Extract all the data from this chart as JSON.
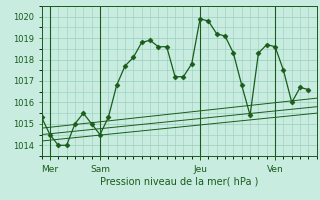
{
  "bg_color": "#c8ece0",
  "grid_color": "#99ccbb",
  "line_color": "#1a5c1a",
  "title": "Pression niveau de la mer( hPa )",
  "ylim": [
    1013.5,
    1020.5
  ],
  "yticks": [
    1014,
    1015,
    1016,
    1017,
    1018,
    1019,
    1020
  ],
  "xlim": [
    0,
    33
  ],
  "day_labels": [
    "Mer",
    "Sam",
    "Jeu",
    "Ven"
  ],
  "day_positions": [
    1,
    7,
    19,
    28
  ],
  "series_main": {
    "x": [
      0,
      1,
      2,
      3,
      4,
      5,
      6,
      7,
      8,
      9,
      10,
      11,
      12,
      13,
      14,
      15,
      16,
      17,
      18,
      19,
      20,
      21,
      22,
      23,
      24,
      25,
      26,
      27,
      28,
      29,
      30,
      31,
      32
    ],
    "y": [
      1015.3,
      1014.5,
      1014.0,
      1014.0,
      1015.0,
      1015.5,
      1015.0,
      1014.5,
      1015.3,
      1016.8,
      1017.7,
      1018.1,
      1018.8,
      1018.9,
      1018.6,
      1018.6,
      1017.2,
      1017.2,
      1017.8,
      1019.9,
      1019.8,
      1019.2,
      1019.1,
      1018.3,
      1016.8,
      1015.4,
      1018.3,
      1018.7,
      1018.6,
      1017.5,
      1016.0,
      1016.7,
      1016.6
    ]
  },
  "series_flat1": {
    "x": [
      0,
      33
    ],
    "y": [
      1014.8,
      1016.2
    ]
  },
  "series_flat2": {
    "x": [
      0,
      33
    ],
    "y": [
      1014.5,
      1015.8
    ]
  },
  "series_flat3": {
    "x": [
      0,
      33
    ],
    "y": [
      1014.2,
      1015.5
    ]
  }
}
